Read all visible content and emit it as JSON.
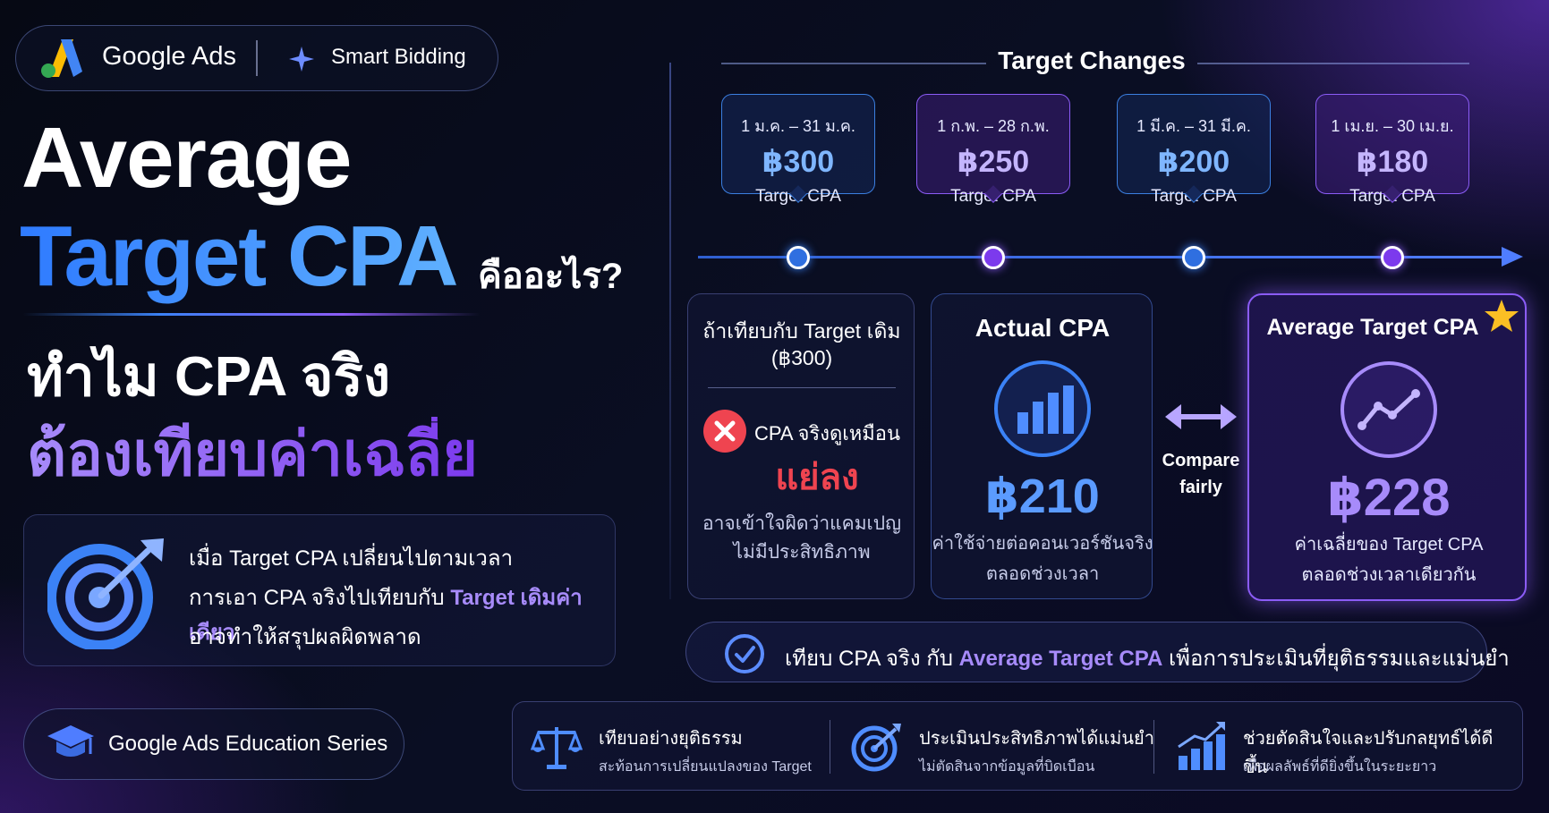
{
  "badge": {
    "brand": "Google Ads",
    "product": "Smart Bidding"
  },
  "headline": {
    "line1": "Average",
    "line2": "Target CPA",
    "line2_suffix": "คืออะไร?",
    "line3": "ทำไม CPA จริง",
    "line4": "ต้องเทียบค่าเฉลี่ย"
  },
  "info_box": {
    "line1": "เมื่อ Target CPA เปลี่ยนไปตามเวลา",
    "line2_prefix": "การเอา CPA จริงไปเทียบกับ ",
    "line2_highlight": "Target เดิมค่าเดียว",
    "line3": "อาจทำให้สรุปผลผิดพลาด"
  },
  "series_badge": {
    "label": "Google Ads Education Series"
  },
  "timeline": {
    "title": "Target Changes",
    "periods": [
      {
        "date": "1 ม.ค. – 31 ม.ค.",
        "price": "฿300",
        "label": "Target CPA"
      },
      {
        "date": "1 ก.พ. – 28 ก.พ.",
        "price": "฿250",
        "label": "Target CPA"
      },
      {
        "date": "1 มี.ค. – 31 มี.ค.",
        "price": "฿200",
        "label": "Target CPA"
      },
      {
        "date": "1 เม.ย. – 30 เม.ย.",
        "price": "฿180",
        "label": "Target CPA"
      }
    ]
  },
  "compare_old": {
    "title_line1": "ถ้าเทียบกับ Target เดิม",
    "title_line2": "(฿300)",
    "status": "CPA จริงดูเหมือน",
    "verdict": "แย่ลง",
    "note_line1": "อาจเข้าใจผิดว่าแคมเปญ",
    "note_line2": "ไม่มีประสิทธิภาพ"
  },
  "actual": {
    "title": "Actual CPA",
    "value": "฿210",
    "desc_line1": "ค่าใช้จ่ายต่อคอนเวอร์ชันจริง",
    "desc_line2": "ตลอดช่วงเวลา"
  },
  "compare_arrow": {
    "line1": "Compare",
    "line2": "fairly"
  },
  "average": {
    "title": "Average Target CPA",
    "value": "฿228",
    "desc_line1": "ค่าเฉลี่ยของ Target CPA",
    "desc_line2": "ตลอดช่วงเวลาเดียวกัน"
  },
  "conclusion": {
    "prefix": "เทียบ CPA จริง กับ ",
    "highlight": "Average Target CPA",
    "suffix": " เพื่อการประเมินที่ยุติธรรมและแม่นยำ"
  },
  "features": [
    {
      "icon": "scale-icon",
      "title": "เทียบอย่างยุติธรรม",
      "subtitle": "สะท้อนการเปลี่ยนแปลงของ Target"
    },
    {
      "icon": "target-icon",
      "title": "ประเมินประสิทธิภาพได้แม่นยำ",
      "subtitle": "ไม่ตัดสินจากข้อมูลที่บิดเบือน"
    },
    {
      "icon": "growth-chart-icon",
      "title": "ช่วยตัดสินใจและปรับกลยุทธ์ได้ดีขึ้น",
      "subtitle": "เพื่อผลลัพธ์ที่ดียิ่งขึ้นในระยะยาว"
    }
  ],
  "colors": {
    "blue": "#3b82f6",
    "purple": "#8b5cf6",
    "red": "#ef4444",
    "background": "#080c1f"
  }
}
